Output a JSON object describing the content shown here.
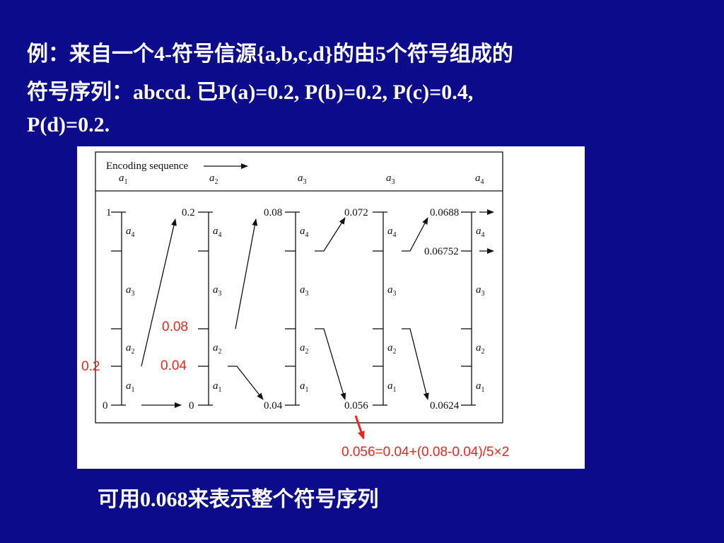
{
  "title": [
    "例：来自一个4-符号信源{a,b,c,d}的由5个符号组成的",
    "符号序列：abccd. 已P(a)=0.2, P(b)=0.2, P(c)=0.4,",
    "P(d)=0.2."
  ],
  "diagram": {
    "header": "Encoding sequence",
    "sequence": [
      {
        "symbol": "a",
        "index": "1"
      },
      {
        "symbol": "a",
        "index": "2"
      },
      {
        "symbol": "a",
        "index": "3"
      },
      {
        "symbol": "a",
        "index": "3"
      },
      {
        "symbol": "a",
        "index": "4"
      }
    ],
    "intervals": [
      {
        "symbol": "a",
        "index": "4"
      },
      {
        "symbol": "a",
        "index": "3"
      },
      {
        "symbol": "a",
        "index": "2"
      },
      {
        "symbol": "a",
        "index": "1"
      }
    ],
    "bounds": [
      {
        "top": "1",
        "bottom": "0"
      },
      {
        "top": "0.2",
        "bottom": "0"
      },
      {
        "top": "0.08",
        "bottom": "0.04"
      },
      {
        "top": "0.072",
        "bottom": "0.056"
      },
      {
        "top": "0.0688",
        "bottom": "0.0624"
      }
    ],
    "extra_bound": "0.06752",
    "annotations": {
      "start": "0.2",
      "upper": "0.08",
      "lower": "0.04",
      "formula": "0.056=0.04+(0.08-0.04)/5×2"
    }
  },
  "footer": "可用0.068来表示整个符号序列"
}
